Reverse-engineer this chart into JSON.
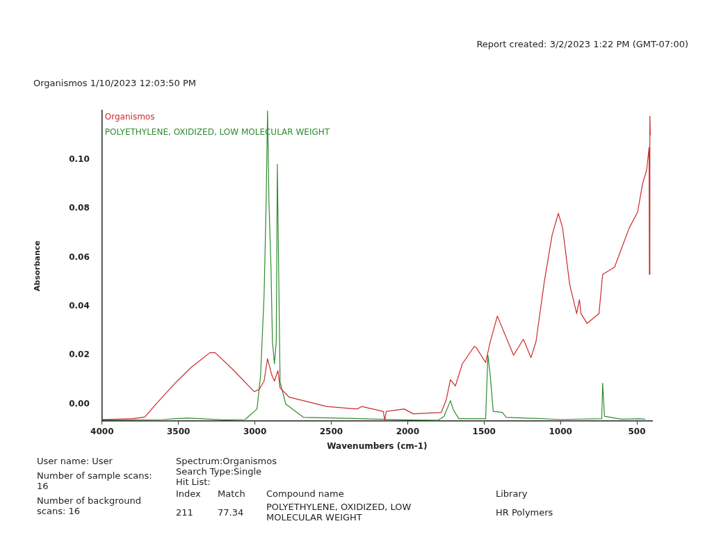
{
  "chart_data": {
    "type": "line",
    "title": "Organismos 1/10/2023 12:03:50 PM",
    "xlabel": "Wavenumbers (cm-1)",
    "ylabel": "Absorbance",
    "xlim": [
      4000,
      400
    ],
    "xticks": [
      4000,
      3500,
      3000,
      2500,
      2000,
      1500,
      1000,
      500
    ],
    "ylim": [
      -0.007,
      0.12
    ],
    "yticks": [
      {
        "value": 0,
        "label": "0.00"
      },
      {
        "value": 0.02,
        "label": "0.02"
      },
      {
        "value": 0.04,
        "label": "0.04"
      },
      {
        "value": 0.06,
        "label": "0.06"
      },
      {
        "value": 0.08,
        "label": "0.08"
      },
      {
        "value": 0.1,
        "label": "0.10"
      }
    ],
    "grid": false,
    "legend": "top left",
    "marker": "none",
    "line_style": "solid",
    "series": [
      {
        "name": "Organismos",
        "color": "#cc2a2a",
        "x": [
          4000,
          3800,
          3720,
          3647,
          3523,
          3417,
          3294,
          3260,
          3142,
          3005,
          2972,
          2940,
          2917,
          2890,
          2872,
          2849,
          2835,
          2775,
          2528,
          2330,
          2300,
          2160,
          2150,
          2140,
          2023,
          1963,
          1780,
          1748,
          1720,
          1688,
          1642,
          1564,
          1550,
          1490,
          1459,
          1413,
          1367,
          1307,
          1243,
          1193,
          1160,
          1106,
          1055,
          1014,
          986,
          940,
          894,
          876,
          866,
          826,
          748,
          724,
          646,
          601,
          550,
          495,
          463,
          436,
          420,
          418,
          415,
          412
        ],
        "values": [
          -0.0063,
          -0.006,
          -0.0053,
          0.0,
          0.0085,
          0.015,
          0.021,
          0.021,
          0.014,
          0.0051,
          0.006,
          0.0094,
          0.0185,
          0.012,
          0.0094,
          0.0137,
          0.0066,
          0.0028,
          -0.001,
          -0.002,
          -0.001,
          -0.003,
          -0.0065,
          -0.003,
          -0.002,
          -0.004,
          -0.0034,
          0.0017,
          0.01,
          0.0074,
          0.0165,
          0.0236,
          0.023,
          0.017,
          0.0256,
          0.036,
          0.029,
          0.02,
          0.0265,
          0.019,
          0.0256,
          0.05,
          0.069,
          0.078,
          0.072,
          0.049,
          0.037,
          0.0427,
          0.037,
          0.033,
          0.037,
          0.053,
          0.056,
          0.0635,
          0.072,
          0.0786,
          0.09,
          0.0957,
          0.105,
          0.053,
          0.1177,
          0.11
        ]
      },
      {
        "name": "POLYETHYLENE, OXIDIZED, LOW MOLECULAR WEIGHT",
        "color": "#2e8b2e",
        "x": [
          4000,
          3600,
          3445,
          3200,
          3064,
          2986,
          2963,
          2940,
          2927,
          2917,
          2908,
          2895,
          2885,
          2872,
          2860,
          2853,
          2840,
          2835,
          2798,
          2683,
          2000,
          1800,
          1762,
          1720,
          1700,
          1665,
          1490,
          1475,
          1460,
          1440,
          1380,
          1355,
          1000,
          730,
          724,
          712,
          600,
          487,
          445
        ],
        "values": [
          -0.0065,
          -0.0063,
          -0.0057,
          -0.0065,
          -0.0063,
          -0.002,
          0.0114,
          0.044,
          0.08,
          0.12,
          0.083,
          0.057,
          0.0256,
          0.0165,
          0.0256,
          0.098,
          0.034,
          0.009,
          0.0,
          -0.0054,
          -0.0065,
          -0.0066,
          -0.005,
          0.0014,
          -0.0025,
          -0.006,
          -0.006,
          0.02,
          0.012,
          -0.003,
          -0.0034,
          -0.0054,
          -0.0063,
          -0.006,
          0.0085,
          -0.005,
          -0.0062,
          -0.006,
          -0.0062
        ]
      }
    ],
    "annotations": [
      "Report created: 3/2/2023 1:22 PM (GMT-07:00)",
      "User name: User",
      "Number of sample scans: 16",
      "Number of background scans: 16",
      "Spectrum:Organismos",
      "Search Type:Single",
      "Hit List:",
      "Index",
      "Match",
      "Compound name",
      "Library",
      "211",
      "77.34",
      "POLYETHYLENE, OXIDIZED, LOW MOLECULAR WEIGHT",
      "HR Polymers"
    ]
  }
}
